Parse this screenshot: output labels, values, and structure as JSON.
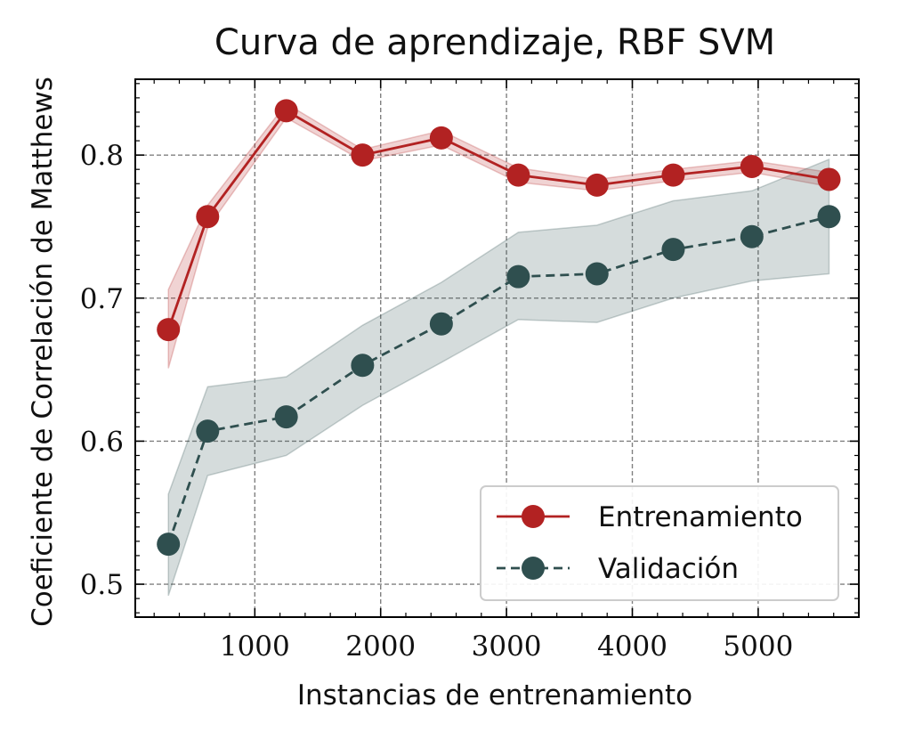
{
  "chart_data": {
    "type": "line",
    "title": "Curva de aprendizaje, RBF SVM",
    "xlabel": "Instancias de entrenamiento",
    "ylabel": "Coeficiente de Correlación de Matthews",
    "xlim": [
      50,
      5800
    ],
    "ylim": [
      0.477,
      0.853
    ],
    "xticks": [
      1000,
      2000,
      3000,
      4000,
      5000
    ],
    "xtick_labels": [
      "1000",
      "2000",
      "3000",
      "4000",
      "5000"
    ],
    "yticks": [
      0.5,
      0.6,
      0.7,
      0.8
    ],
    "ytick_labels": [
      "0.5",
      "0.6",
      "0.7",
      "0.8"
    ],
    "grid": true,
    "legend_position": "lower-right",
    "x": [
      313,
      625,
      1250,
      1856,
      2482,
      3094,
      3719,
      4325,
      4950,
      5563
    ],
    "series": [
      {
        "name": "Entrenamiento",
        "color": "#b22222",
        "line_style": "solid",
        "values": [
          0.678,
          0.757,
          0.831,
          0.8,
          0.812,
          0.786,
          0.779,
          0.786,
          0.792,
          0.783
        ],
        "band_low": [
          0.651,
          0.749,
          0.826,
          0.796,
          0.807,
          0.781,
          0.775,
          0.782,
          0.788,
          0.778
        ],
        "band_high": [
          0.706,
          0.765,
          0.836,
          0.804,
          0.817,
          0.791,
          0.783,
          0.79,
          0.796,
          0.788
        ]
      },
      {
        "name": "Validación",
        "color": "#2f4f4f",
        "line_style": "dashed",
        "values": [
          0.528,
          0.607,
          0.617,
          0.653,
          0.682,
          0.715,
          0.717,
          0.734,
          0.743,
          0.757
        ],
        "band_low": [
          0.492,
          0.576,
          0.59,
          0.625,
          0.655,
          0.685,
          0.683,
          0.7,
          0.712,
          0.717
        ],
        "band_high": [
          0.563,
          0.638,
          0.645,
          0.681,
          0.711,
          0.746,
          0.751,
          0.768,
          0.775,
          0.797
        ]
      }
    ]
  }
}
